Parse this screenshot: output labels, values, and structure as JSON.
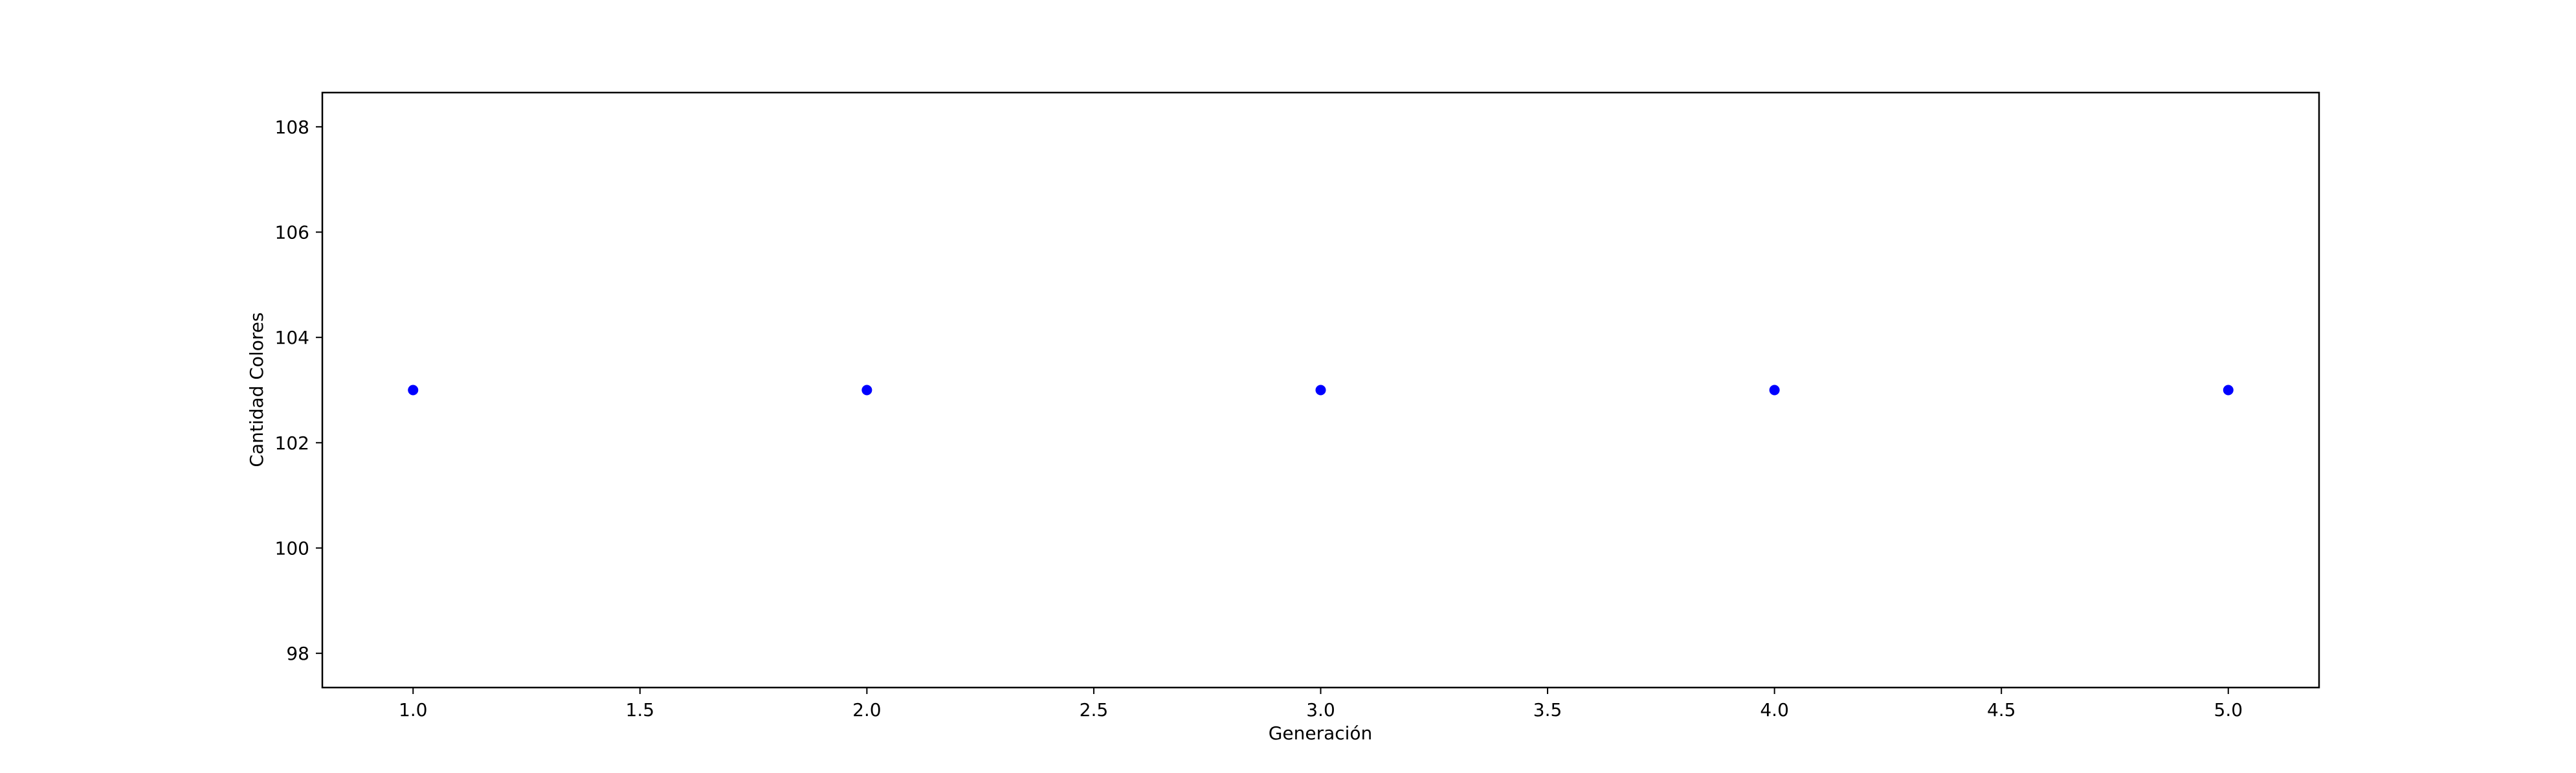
{
  "chart_data": {
    "type": "scatter",
    "title": "",
    "xlabel": "Generación",
    "ylabel": "Cantidad Colores",
    "x": [
      1.0,
      2.0,
      3.0,
      4.0,
      5.0
    ],
    "series": [
      {
        "values": [
          103,
          103,
          103,
          103,
          103
        ],
        "color": "#0000ff",
        "marker": "circle"
      }
    ],
    "xlim": [
      0.8,
      5.2
    ],
    "ylim": [
      97.35,
      108.65
    ],
    "xticks": [
      1.0,
      1.5,
      2.0,
      2.5,
      3.0,
      3.5,
      4.0,
      4.5,
      5.0
    ],
    "xtick_labels": [
      "1.0",
      "1.5",
      "2.0",
      "2.5",
      "3.0",
      "3.5",
      "4.0",
      "4.5",
      "5.0"
    ],
    "yticks": [
      98,
      100,
      102,
      104,
      106,
      108
    ],
    "ytick_labels": [
      "98",
      "100",
      "102",
      "104",
      "106",
      "108"
    ],
    "grid": false,
    "legend": "none"
  }
}
